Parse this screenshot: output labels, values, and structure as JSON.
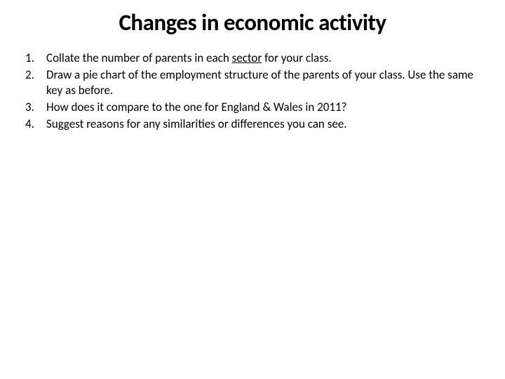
{
  "title": "Changes in economic activity",
  "items": [
    {
      "number": "1.",
      "text_before": "Collate the number of parents in each ",
      "underlined": "sector",
      "text_after": " for your class."
    },
    {
      "number": "2.",
      "text_before": "Draw a pie chart of the employment structure of the parents of your class.  Use the same key as before.",
      "underlined": "",
      "text_after": ""
    },
    {
      "number": "3.",
      "text_before": "How does it compare to the one for England & Wales in 2011?",
      "underlined": "",
      "text_after": ""
    },
    {
      "number": "4.",
      "text_before": "Suggest reasons for any similarities or differences you can see.",
      "underlined": "",
      "text_after": ""
    }
  ],
  "styling": {
    "background_color": "#ffffff",
    "text_color": "#000000",
    "title_fontsize": 33,
    "title_weight": 700,
    "body_fontsize": 17,
    "font_family": "Calibri, Arial, sans-serif"
  }
}
